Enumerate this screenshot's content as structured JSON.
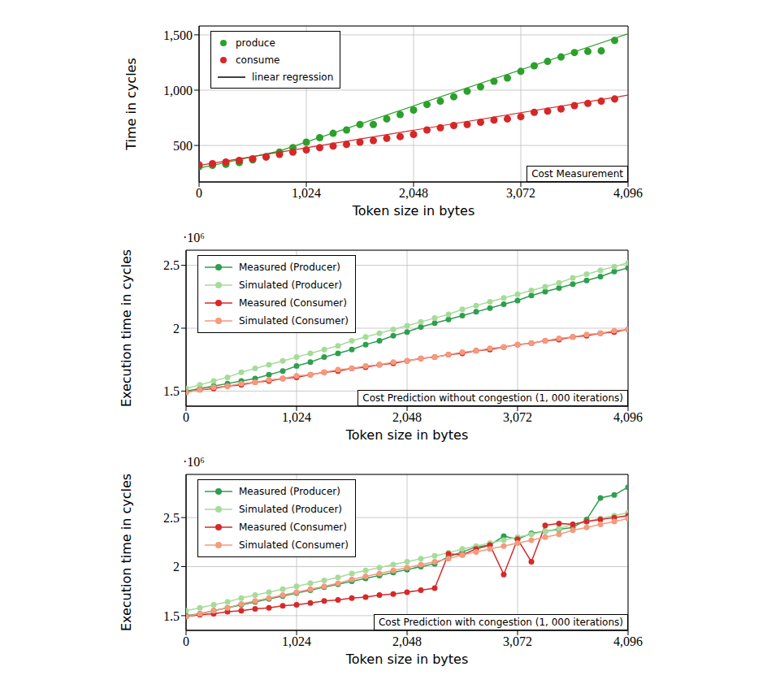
{
  "chart_data": [
    {
      "type": "scatter",
      "annotation": "Cost Measurement",
      "x_label": "Token size in bytes",
      "y_label": "Time in cycles",
      "xlim": [
        0,
        4096
      ],
      "ylim": [
        170,
        1580
      ],
      "xticks": [
        0,
        {
          "value": 1024,
          "label": "1,024"
        },
        {
          "value": 2048,
          "label": "2,048"
        },
        {
          "value": 3072,
          "label": "3,072"
        },
        {
          "value": 4096,
          "label": "4,096"
        }
      ],
      "yticks": [
        500,
        {
          "value": 1000,
          "label": "1,000"
        },
        {
          "value": 1500,
          "label": "1,500"
        }
      ],
      "grid": true,
      "legend": "upper left",
      "x": [
        0,
        128,
        256,
        384,
        512,
        640,
        768,
        896,
        1024,
        1152,
        1280,
        1408,
        1536,
        1664,
        1792,
        1920,
        2048,
        2176,
        2304,
        2432,
        2560,
        2688,
        2816,
        2944,
        3072,
        3200,
        3328,
        3456,
        3584,
        3712,
        3840,
        3968,
        4096
      ],
      "series": [
        {
          "name": "produce",
          "type": "scatter",
          "marker": "circle",
          "line_style": "none",
          "color": "#2ca02c",
          "values": [
            310,
            320,
            330,
            345,
            370,
            400,
            440,
            480,
            530,
            570,
            610,
            640,
            690,
            690,
            740,
            780,
            820,
            870,
            900,
            940,
            990,
            1030,
            1080,
            1110,
            1170,
            1220,
            1260,
            1300,
            1340,
            1350,
            1355,
            1450,
            null
          ]
        },
        {
          "name": "consume",
          "type": "scatter",
          "marker": "circle",
          "line_style": "none",
          "color": "#d62728",
          "values": [
            325,
            335,
            350,
            365,
            380,
            395,
            420,
            440,
            460,
            480,
            495,
            510,
            530,
            545,
            565,
            580,
            600,
            640,
            660,
            680,
            690,
            710,
            730,
            740,
            760,
            800,
            810,
            830,
            860,
            880,
            900,
            920,
            null
          ]
        },
        {
          "name": "linear regression",
          "type": "line",
          "marker": "none",
          "line_style": "solid",
          "color": "#000000",
          "lines": [
            {
              "color": "#2ca02c",
              "x": [
                0,
                768,
                4096
              ],
              "values": [
                295,
                450,
                1510
              ]
            },
            {
              "color": "#d62728",
              "x": [
                0,
                4096
              ],
              "values": [
                320,
                955
              ]
            }
          ]
        }
      ]
    },
    {
      "type": "line",
      "annotation": "Cost Prediction without congestion (1, 000 iterations)",
      "y_unit": "·10⁶",
      "x_label": "Token size in bytes",
      "y_label": "Execution time in cycles",
      "xlim": [
        0,
        4096
      ],
      "ylim": [
        1.38,
        2.62
      ],
      "xticks": [
        0,
        {
          "value": 1024,
          "label": "1,024"
        },
        {
          "value": 2048,
          "label": "2,048"
        },
        {
          "value": 3072,
          "label": "3,072"
        },
        {
          "value": 4096,
          "label": "4,096"
        }
      ],
      "yticks": [
        1.5,
        2,
        2.5
      ],
      "grid": true,
      "legend": "upper left",
      "x": [
        0,
        128,
        256,
        384,
        512,
        640,
        768,
        896,
        1024,
        1152,
        1280,
        1408,
        1536,
        1664,
        1792,
        1920,
        2048,
        2176,
        2304,
        2432,
        2560,
        2688,
        2816,
        2944,
        3072,
        3200,
        3328,
        3456,
        3584,
        3712,
        3840,
        3968,
        4096
      ],
      "series": [
        {
          "name": "Measured (Producer)",
          "marker": "circle",
          "line_style": "solid",
          "color": "#2e9e4f",
          "values": [
            1.5,
            1.52,
            1.54,
            1.56,
            1.58,
            1.6,
            1.63,
            1.66,
            1.7,
            1.73,
            1.77,
            1.8,
            1.83,
            1.87,
            1.9,
            1.94,
            1.97,
            2.01,
            2.04,
            2.07,
            2.1,
            2.13,
            2.16,
            2.19,
            2.22,
            2.26,
            2.29,
            2.32,
            2.35,
            2.38,
            2.41,
            2.45,
            2.48
          ]
        },
        {
          "name": "Simulated (Producer)",
          "marker": "circle",
          "line_style": "solid",
          "color": "#a6db9a",
          "values": [
            1.52,
            1.55,
            1.58,
            1.61,
            1.65,
            1.68,
            1.71,
            1.74,
            1.77,
            1.8,
            1.83,
            1.86,
            1.9,
            1.93,
            1.96,
            1.99,
            2.02,
            2.05,
            2.08,
            2.11,
            2.15,
            2.18,
            2.21,
            2.24,
            2.27,
            2.3,
            2.33,
            2.36,
            2.4,
            2.43,
            2.46,
            2.49,
            2.52
          ]
        },
        {
          "name": "Measured (Consumer)",
          "marker": "circle",
          "line_style": "solid",
          "color": "#d62a2a",
          "values": [
            1.49,
            1.51,
            1.52,
            1.54,
            1.55,
            1.57,
            1.58,
            1.6,
            1.61,
            1.63,
            1.65,
            1.66,
            1.68,
            1.69,
            1.71,
            1.72,
            1.74,
            1.76,
            1.77,
            1.79,
            1.8,
            1.82,
            1.83,
            1.85,
            1.87,
            1.88,
            1.9,
            1.91,
            1.93,
            1.94,
            1.96,
            1.97,
            1.99
          ]
        },
        {
          "name": "Simulated (Consumer)",
          "marker": "circle",
          "line_style": "solid",
          "color": "#f59a7e",
          "values": [
            1.49,
            1.51,
            1.53,
            1.54,
            1.56,
            1.57,
            1.59,
            1.6,
            1.62,
            1.63,
            1.65,
            1.67,
            1.68,
            1.7,
            1.71,
            1.73,
            1.74,
            1.76,
            1.77,
            1.79,
            1.81,
            1.82,
            1.84,
            1.85,
            1.87,
            1.88,
            1.9,
            1.92,
            1.93,
            1.95,
            1.96,
            1.98,
            1.99
          ]
        }
      ]
    },
    {
      "type": "line",
      "annotation": "Cost Prediction with congestion (1, 000 iterations)",
      "y_unit": "·10⁶",
      "x_label": "Token size in bytes",
      "y_label": "Execution time in cycles",
      "xlim": [
        0,
        4096
      ],
      "ylim": [
        1.35,
        2.94
      ],
      "xticks": [
        0,
        {
          "value": 1024,
          "label": "1,024"
        },
        {
          "value": 2048,
          "label": "2,048"
        },
        {
          "value": 3072,
          "label": "3,072"
        },
        {
          "value": 4096,
          "label": "4,096"
        }
      ],
      "yticks": [
        1.5,
        2,
        2.5
      ],
      "grid": true,
      "legend": "upper left",
      "x": [
        0,
        128,
        256,
        384,
        512,
        640,
        768,
        896,
        1024,
        1152,
        1280,
        1408,
        1536,
        1664,
        1792,
        1920,
        2048,
        2176,
        2304,
        2432,
        2560,
        2688,
        2816,
        2944,
        3072,
        3200,
        3328,
        3456,
        3584,
        3712,
        3840,
        3968,
        4096
      ],
      "series": [
        {
          "name": "Measured (Producer)",
          "marker": "circle",
          "line_style": "solid",
          "color": "#2e9e4f",
          "values": [
            1.5,
            1.52,
            1.55,
            1.58,
            1.61,
            1.64,
            1.67,
            1.7,
            1.73,
            1.76,
            1.79,
            1.82,
            1.85,
            1.88,
            1.91,
            1.94,
            1.97,
            2.0,
            2.03,
            2.1,
            2.15,
            2.2,
            2.22,
            2.31,
            2.28,
            2.34,
            2.36,
            2.38,
            2.4,
            2.48,
            2.7,
            2.73,
            2.81
          ]
        },
        {
          "name": "Simulated (Producer)",
          "marker": "circle",
          "line_style": "solid",
          "color": "#a6db9a",
          "values": [
            1.55,
            1.58,
            1.61,
            1.64,
            1.68,
            1.71,
            1.74,
            1.77,
            1.8,
            1.83,
            1.86,
            1.89,
            1.93,
            1.96,
            1.99,
            2.02,
            2.05,
            2.08,
            2.11,
            2.14,
            2.18,
            2.21,
            2.24,
            2.27,
            2.3,
            2.33,
            2.36,
            2.39,
            2.43,
            2.46,
            2.49,
            2.52,
            2.55
          ]
        },
        {
          "name": "Measured (Consumer)",
          "marker": "circle",
          "line_style": "solid",
          "color": "#d62a2a",
          "values": [
            1.49,
            1.51,
            1.52,
            1.54,
            1.55,
            1.57,
            1.58,
            1.6,
            1.61,
            1.63,
            1.65,
            1.66,
            1.68,
            1.69,
            1.71,
            1.72,
            1.74,
            1.76,
            1.78,
            2.13,
            2.12,
            2.18,
            2.22,
            1.92,
            2.28,
            2.05,
            2.42,
            2.44,
            2.43,
            2.46,
            2.48,
            2.5,
            2.52
          ]
        },
        {
          "name": "Simulated (Consumer)",
          "marker": "circle",
          "line_style": "solid",
          "color": "#f59a7e",
          "values": [
            1.49,
            1.52,
            1.55,
            1.58,
            1.62,
            1.65,
            1.68,
            1.71,
            1.74,
            1.77,
            1.8,
            1.83,
            1.87,
            1.9,
            1.93,
            1.96,
            1.99,
            2.02,
            2.05,
            2.08,
            2.12,
            2.15,
            2.18,
            2.21,
            2.24,
            2.27,
            2.3,
            2.33,
            2.37,
            2.4,
            2.43,
            2.46,
            2.49
          ]
        }
      ]
    }
  ]
}
